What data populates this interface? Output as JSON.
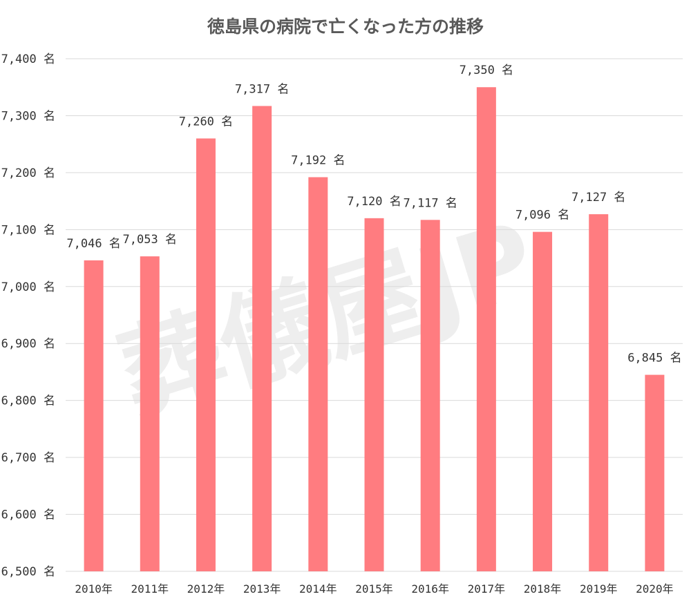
{
  "chart_data": {
    "type": "bar",
    "title": "徳島県の病院で亡くなった方の推移",
    "categories": [
      "2010年",
      "2011年",
      "2012年",
      "2013年",
      "2014年",
      "2015年",
      "2016年",
      "2017年",
      "2018年",
      "2019年",
      "2020年"
    ],
    "values": [
      7046,
      7053,
      7260,
      7317,
      7192,
      7120,
      7117,
      7350,
      7096,
      7127,
      6845
    ],
    "data_labels": [
      "7,046 名",
      "7,053 名",
      "7,260 名",
      "7,317 名",
      "7,192 名",
      "7,120 名",
      "7,117 名",
      "7,350 名",
      "7,096 名",
      "7,127 名",
      "6,845 名"
    ],
    "y_ticks": [
      6500,
      6600,
      6700,
      6800,
      6900,
      7000,
      7100,
      7200,
      7300,
      7400
    ],
    "y_tick_labels": [
      "6,500 名",
      "6,600 名",
      "6,700 名",
      "6,800 名",
      "6,900 名",
      "7,000 名",
      "7,100 名",
      "7,200 名",
      "7,300 名",
      "7,400 名"
    ],
    "ylim": [
      6500,
      7400
    ],
    "grid": true,
    "legend": "none",
    "bar_color": "#ff7c80",
    "gridline_color": "#d9d9d9",
    "watermark": "葬儀屋JP"
  }
}
